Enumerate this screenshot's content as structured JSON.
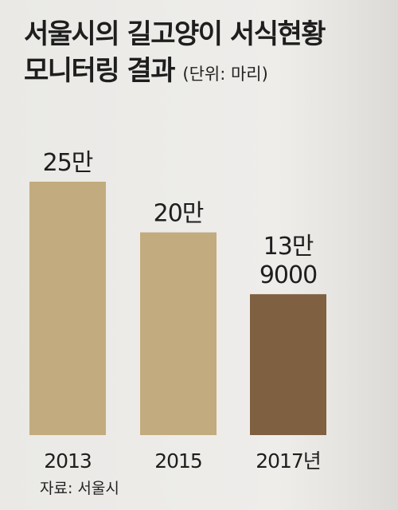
{
  "title": {
    "line1": "서울시의 길고양이 서식현황",
    "line2": "모니터링 결과",
    "unit": "(단위:  마리)"
  },
  "source": "자료: 서울시",
  "colors": {
    "bar_default": "#c2ab7e",
    "bar_highlight": "#7f6040"
  },
  "chart_data": {
    "type": "bar",
    "categories": [
      "2013",
      "2015",
      "2017년"
    ],
    "values": [
      250000,
      200000,
      139000
    ],
    "data_labels": [
      [
        "25만"
      ],
      [
        "20만"
      ],
      [
        "13만",
        "9000"
      ]
    ],
    "highlight_index": 2,
    "ylim": [
      0,
      250000
    ],
    "grid": false,
    "legend": "none"
  }
}
